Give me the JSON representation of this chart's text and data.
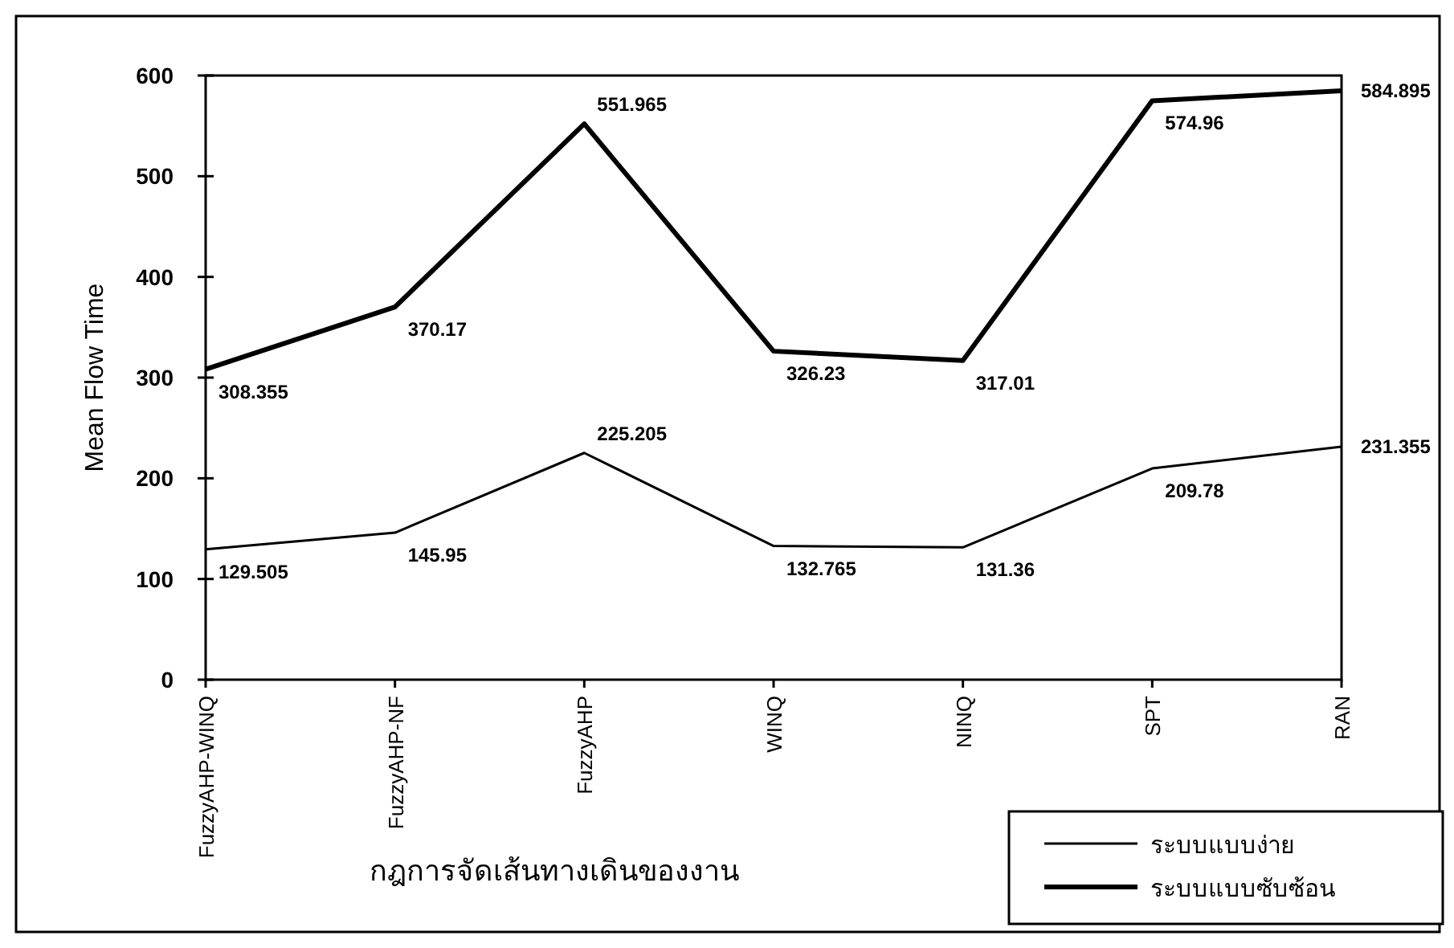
{
  "chart_data": {
    "type": "line",
    "categories": [
      "FuzzyAHP-WINQ",
      "FuzzyAHP-NF",
      "FuzzyAHP",
      "WINQ",
      "NINQ",
      "SPT",
      "RAN"
    ],
    "series": [
      {
        "name": "ระบบแบบง่าย",
        "color": "#000000",
        "values": [
          129.505,
          145.95,
          225.205,
          132.765,
          131.36,
          209.78,
          231.355
        ]
      },
      {
        "name": "ระบบแบบซับซ้อน",
        "color": "#000000",
        "values": [
          308.355,
          370.17,
          551.965,
          326.23,
          317.01,
          574.96,
          584.895
        ]
      }
    ],
    "xlabel": "กฎการจัดเส้นทางเดินของงาน",
    "ylabel": "Mean Flow Time",
    "ylim": [
      0,
      600
    ],
    "yticks": [
      0,
      100,
      200,
      300,
      400,
      500,
      600
    ],
    "data_labels": true,
    "legend": "bottom right",
    "grid": false
  }
}
